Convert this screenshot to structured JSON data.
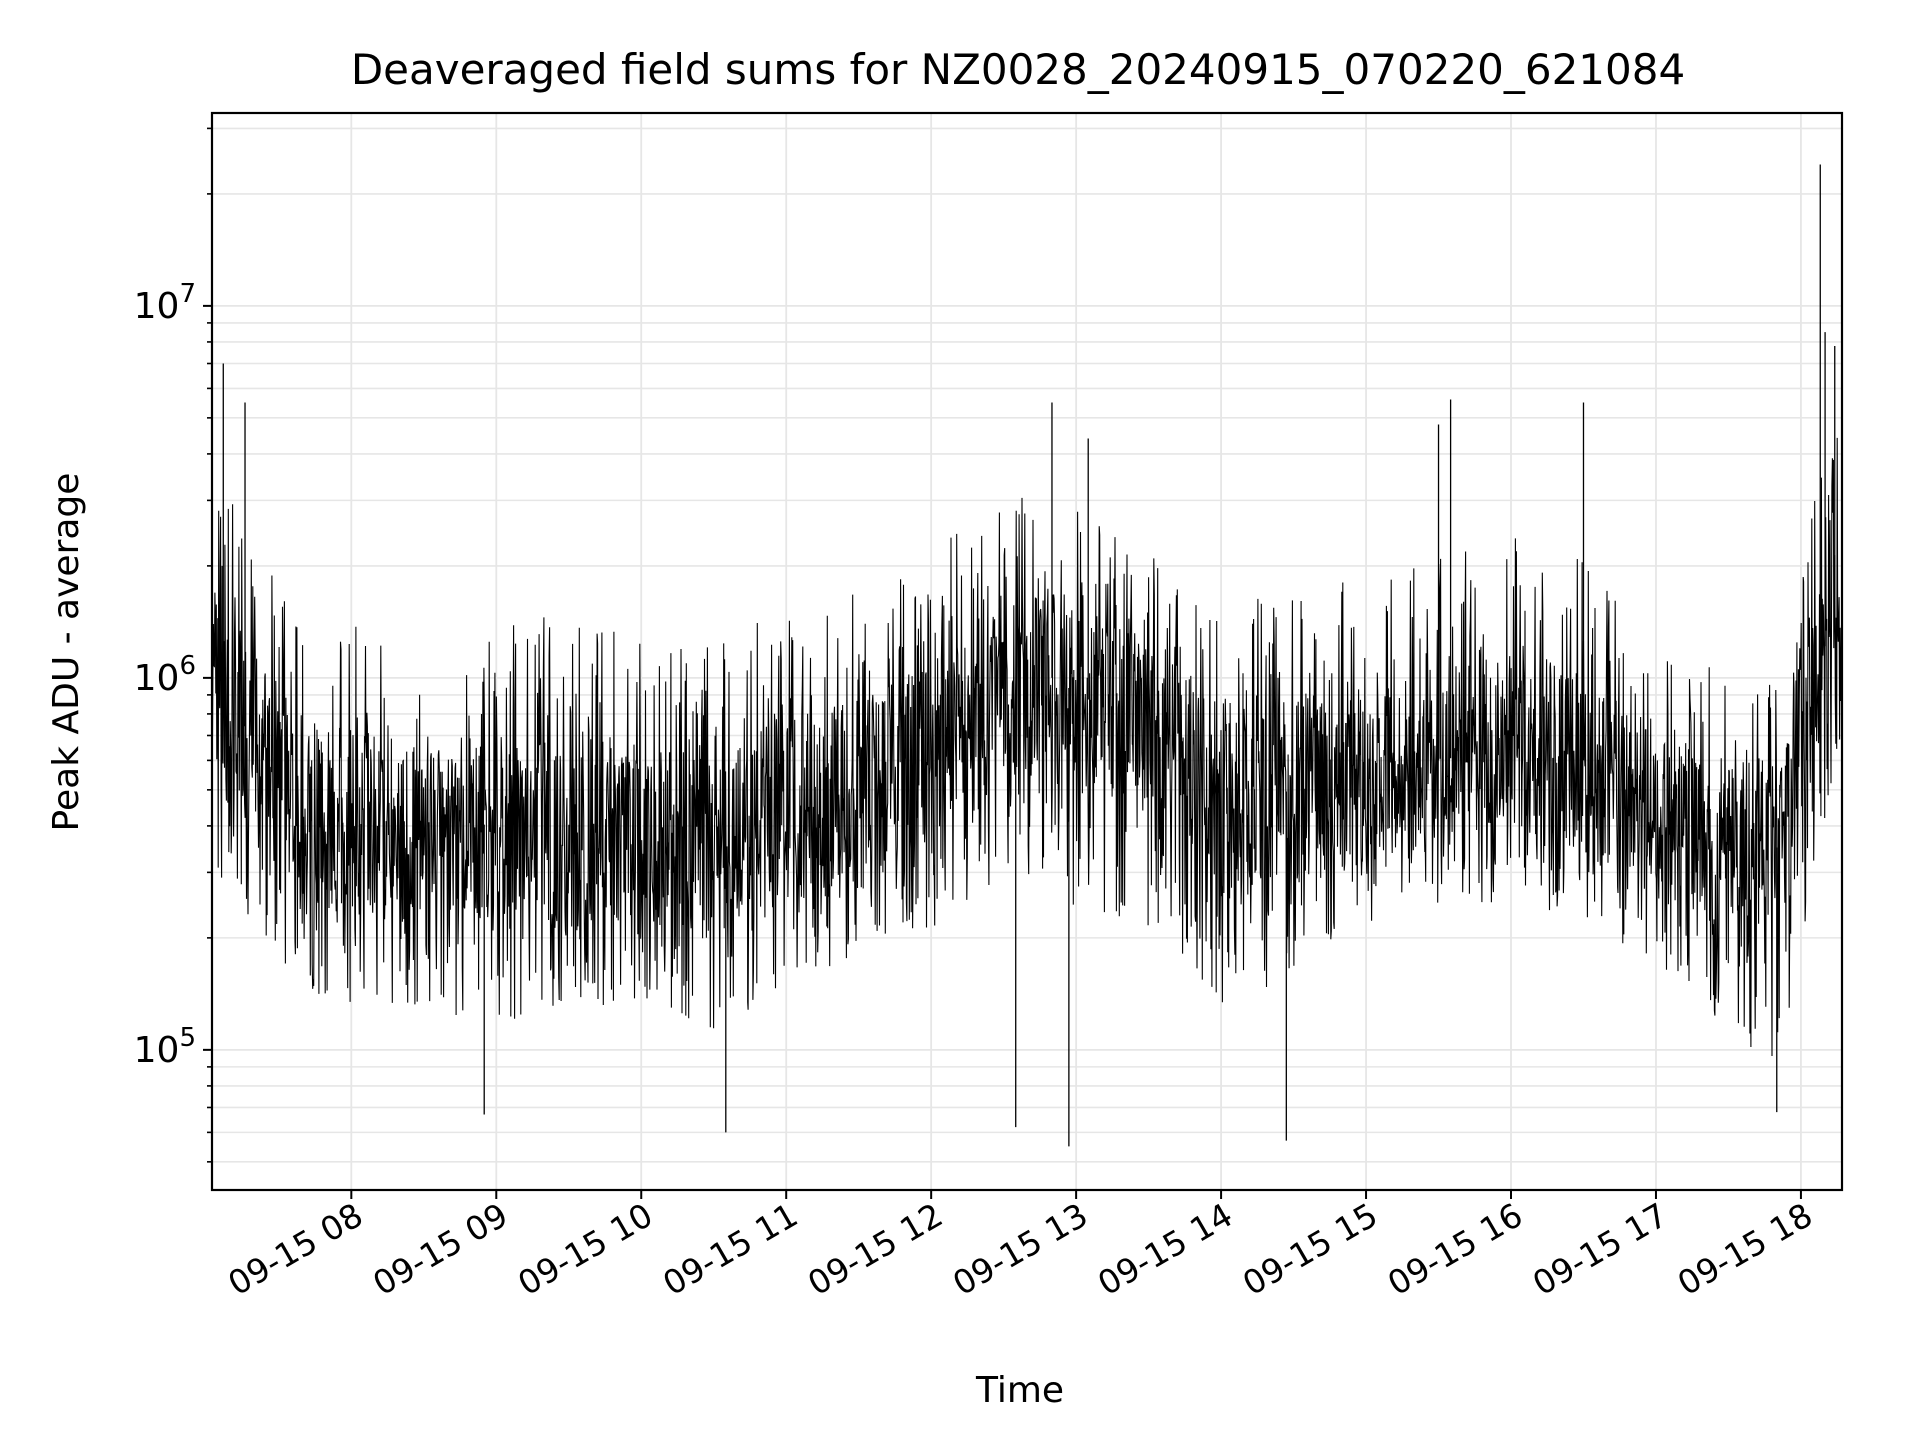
{
  "chart_data": {
    "type": "line",
    "title": "Deaveraged field sums for NZ0028_20240915_070220_621084",
    "xlabel": "Time",
    "ylabel": "Peak ADU - average",
    "yscale": "log",
    "grid": true,
    "line_color": "#000000",
    "grid_color": "#e6e6e6",
    "xlim": [
      "2024-09-15T07:02:20",
      "2024-09-15T18:17:00"
    ],
    "ylim": [
      42000,
      33000000
    ],
    "x_ticks": [
      {
        "time": "2024-09-15T08:00:00",
        "label": "09-15 08"
      },
      {
        "time": "2024-09-15T09:00:00",
        "label": "09-15 09"
      },
      {
        "time": "2024-09-15T10:00:00",
        "label": "09-15 10"
      },
      {
        "time": "2024-09-15T11:00:00",
        "label": "09-15 11"
      },
      {
        "time": "2024-09-15T12:00:00",
        "label": "09-15 12"
      },
      {
        "time": "2024-09-15T13:00:00",
        "label": "09-15 13"
      },
      {
        "time": "2024-09-15T14:00:00",
        "label": "09-15 14"
      },
      {
        "time": "2024-09-15T15:00:00",
        "label": "09-15 15"
      },
      {
        "time": "2024-09-15T16:00:00",
        "label": "09-15 16"
      },
      {
        "time": "2024-09-15T17:00:00",
        "label": "09-15 17"
      },
      {
        "time": "2024-09-15T18:00:00",
        "label": "09-15 18"
      }
    ],
    "y_ticks": [
      {
        "value": 100000,
        "base": "10",
        "exp": "5"
      },
      {
        "value": 1000000,
        "base": "10",
        "exp": "6"
      },
      {
        "value": 10000000,
        "base": "10",
        "exp": "7"
      }
    ],
    "series_envelope": {
      "x": [
        "2024-09-15T07:02:20",
        "2024-09-15T07:20:00",
        "2024-09-15T07:40:00",
        "2024-09-15T08:00:00",
        "2024-09-15T08:30:00",
        "2024-09-15T09:00:00",
        "2024-09-15T09:30:00",
        "2024-09-15T10:00:00",
        "2024-09-15T10:30:00",
        "2024-09-15T11:00:00",
        "2024-09-15T11:30:00",
        "2024-09-15T12:00:00",
        "2024-09-15T12:30:00",
        "2024-09-15T12:50:00",
        "2024-09-15T13:15:00",
        "2024-09-15T13:40:00",
        "2024-09-15T14:00:00",
        "2024-09-15T14:30:00",
        "2024-09-15T15:00:00",
        "2024-09-15T15:30:00",
        "2024-09-15T16:00:00",
        "2024-09-15T16:30:00",
        "2024-09-15T17:00:00",
        "2024-09-15T17:30:00",
        "2024-09-15T17:50:00",
        "2024-09-15T18:05:00",
        "2024-09-15T18:17:00"
      ],
      "low": [
        300000,
        200000,
        150000,
        120000,
        130000,
        110000,
        130000,
        130000,
        110000,
        150000,
        180000,
        210000,
        260000,
        250000,
        220000,
        200000,
        120000,
        160000,
        220000,
        240000,
        240000,
        210000,
        170000,
        110000,
        80000,
        250000,
        700000
      ],
      "mid": [
        900000,
        700000,
        450000,
        400000,
        420000,
        400000,
        380000,
        380000,
        350000,
        450000,
        500000,
        600000,
        900000,
        1000000,
        800000,
        700000,
        450000,
        500000,
        550000,
        600000,
        650000,
        600000,
        450000,
        350000,
        350000,
        1000000,
        1600000
      ],
      "high": [
        3500000,
        2500000,
        1500000,
        1500000,
        1400000,
        1400000,
        1500000,
        1300000,
        1200000,
        1600000,
        1700000,
        2200000,
        3000000,
        3500000,
        2500000,
        2000000,
        1500000,
        1800000,
        2000000,
        2200000,
        2400000,
        2100000,
        1300000,
        1000000,
        1000000,
        3000000,
        5000000
      ]
    },
    "notable_spikes": [
      {
        "time": "2024-09-15T07:07:00",
        "value": 7000000
      },
      {
        "time": "2024-09-15T07:16:00",
        "value": 5500000
      },
      {
        "time": "2024-09-15T12:50:00",
        "value": 5500000
      },
      {
        "time": "2024-09-15T13:05:00",
        "value": 4400000
      },
      {
        "time": "2024-09-15T15:30:00",
        "value": 4800000
      },
      {
        "time": "2024-09-15T15:35:00",
        "value": 5600000
      },
      {
        "time": "2024-09-15T16:30:00",
        "value": 5500000
      },
      {
        "time": "2024-09-15T18:08:00",
        "value": 24000000
      },
      {
        "time": "2024-09-15T18:10:00",
        "value": 8500000
      },
      {
        "time": "2024-09-15T18:14:00",
        "value": 7800000
      },
      {
        "time": "2024-09-15T12:35:00",
        "value": 62000
      },
      {
        "time": "2024-09-15T12:57:00",
        "value": 55000
      },
      {
        "time": "2024-09-15T14:27:00",
        "value": 57000
      },
      {
        "time": "2024-09-15T10:35:00",
        "value": 60000
      },
      {
        "time": "2024-09-15T08:55:00",
        "value": 67000
      },
      {
        "time": "2024-09-15T17:50:00",
        "value": 68000
      }
    ]
  }
}
